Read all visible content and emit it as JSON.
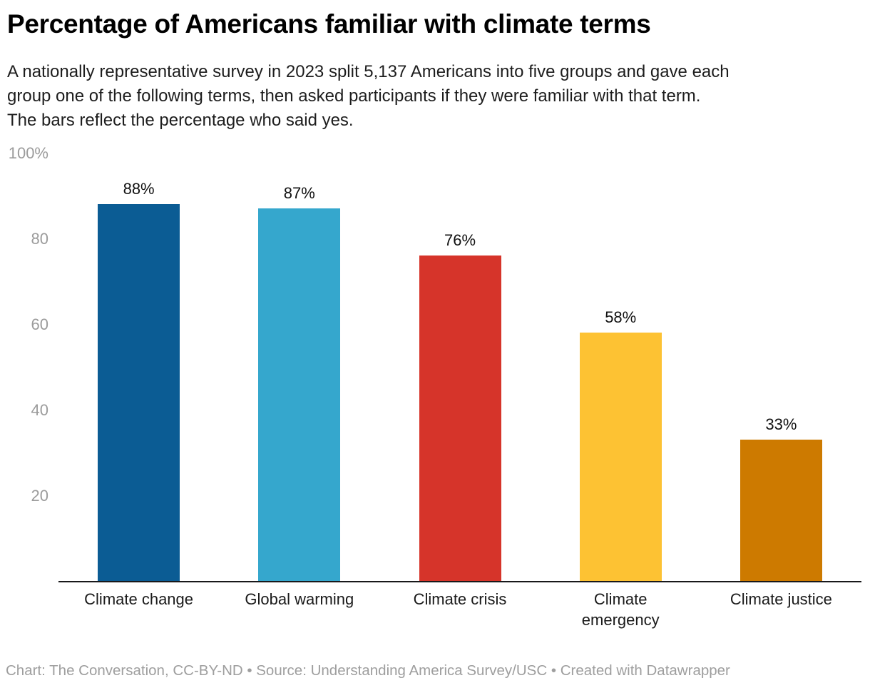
{
  "header": {
    "title": "Percentage of Americans familiar with climate terms",
    "subtitle_lines": [
      "A nationally representative survey in 2023 split 5,137 Americans into five groups and gave each",
      "group one of the following terms, then asked participants if they were familiar with that term.",
      "The bars reflect the percentage who said yes."
    ]
  },
  "chart_data": {
    "type": "bar",
    "title": "Percentage of Americans familiar with climate terms",
    "subtitle": "A nationally representative survey in 2023 split 5,137 Americans into five groups and gave each group one of the following terms, then asked participants if they were familiar with that term. The bars reflect the percentage who said yes.",
    "categories": [
      "Climate change",
      "Global warming",
      "Climate crisis",
      "Climate emergency",
      "Climate justice"
    ],
    "values": [
      88,
      87,
      76,
      58,
      33
    ],
    "value_labels": [
      "88%",
      "87%",
      "76%",
      "58%",
      "33%"
    ],
    "bar_colors": [
      "#0b5c94",
      "#35a7cd",
      "#d6342a",
      "#fdc233",
      "#cd7a00"
    ],
    "y_ticks": [
      "100%",
      "80",
      "60",
      "40",
      "20"
    ],
    "ylim": [
      0,
      100
    ],
    "xlabel": "",
    "ylabel": "",
    "grid": "off",
    "legend": "none"
  },
  "colors": {
    "background": "#ffffff",
    "title_text": "#000000",
    "subtitle_text": "#1d1d1d",
    "tick_label": "#9b9b9b",
    "category_label": "#1a1a1a",
    "value_label": "#111111",
    "axis_line": "#18181a",
    "footer_text": "#9e9e9e"
  },
  "footer": {
    "credit": "Chart: The Conversation, CC-BY-ND • Source: Understanding America Survey/USC • Created with Datawrapper"
  }
}
